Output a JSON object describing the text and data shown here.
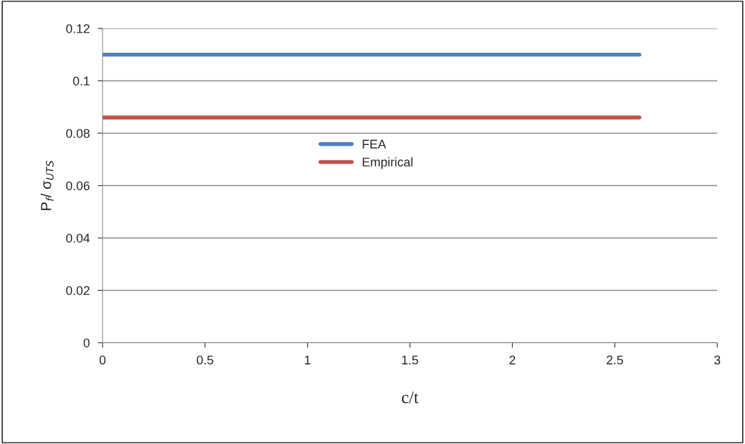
{
  "chart_data": {
    "type": "line",
    "xlabel": "c/t",
    "ylabel": "P$_{f}$/ σ$_{UTS}$",
    "x": [
      0,
      2.62
    ],
    "series": [
      {
        "name": "FEA",
        "color": "#4f81bd",
        "values": [
          0.11,
          0.11
        ]
      },
      {
        "name": "Empirical",
        "color": "#c0504d",
        "values": [
          0.086,
          0.086
        ]
      }
    ],
    "xlim": [
      0,
      3
    ],
    "xticks": [
      0,
      0.5,
      1,
      1.5,
      2,
      2.5,
      3
    ],
    "ylim": [
      0,
      0.12
    ],
    "yticks": [
      0,
      0.02,
      0.04,
      0.06,
      0.08,
      0.1,
      0.12
    ],
    "grid": "y",
    "legend": "center",
    "marker": "none",
    "line_style": "solid"
  }
}
